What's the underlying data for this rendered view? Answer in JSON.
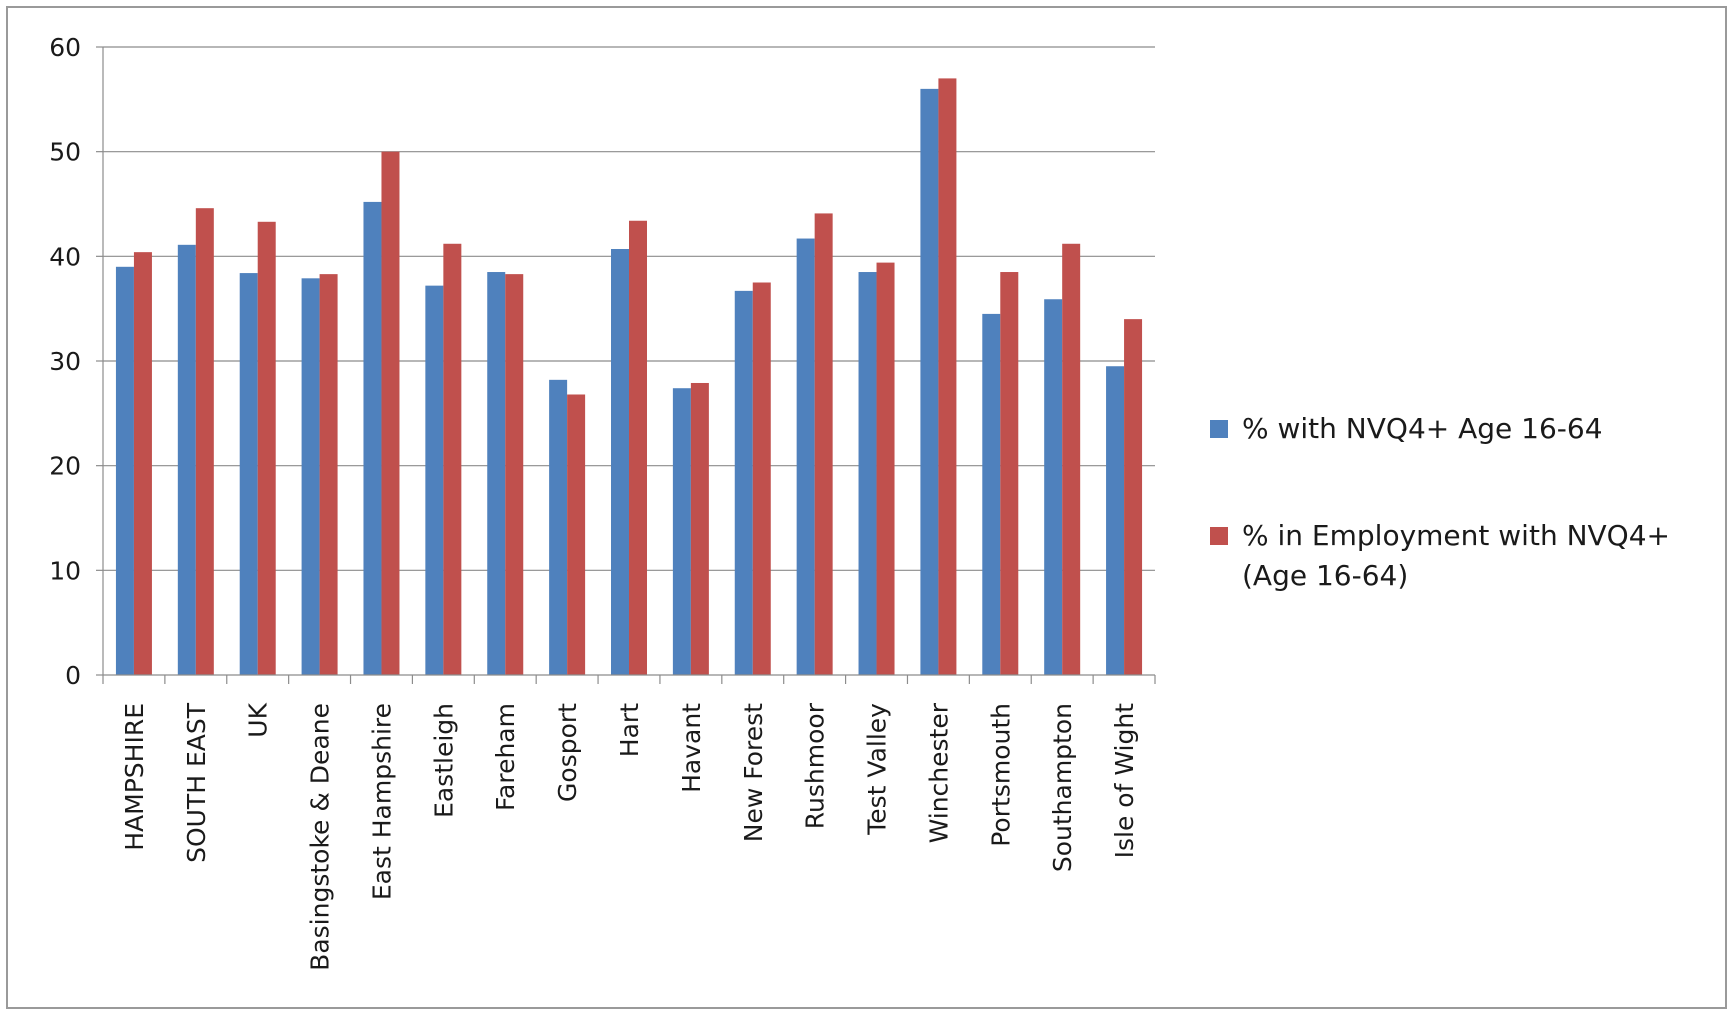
{
  "chart_data": {
    "type": "bar",
    "title": "",
    "xlabel": "",
    "ylabel": "",
    "ylim": [
      0,
      60
    ],
    "yticks": [
      0,
      10,
      20,
      30,
      40,
      50,
      60
    ],
    "grid": true,
    "legend_position": "right",
    "categories": [
      "HAMPSHIRE",
      "SOUTH EAST",
      "UK",
      "Basingstoke & Deane",
      "East Hampshire",
      "Eastleigh",
      "Fareham",
      "Gosport",
      "Hart",
      "Havant",
      "New Forest",
      "Rushmoor",
      "Test Valley",
      "Winchester",
      "Portsmouth",
      "Southampton",
      "Isle of Wight"
    ],
    "series": [
      {
        "name": "% with NVQ4+ Age 16-64",
        "color": "#4f81bd",
        "values": [
          39.0,
          41.1,
          38.4,
          37.9,
          45.2,
          37.2,
          38.5,
          28.2,
          40.7,
          27.4,
          36.7,
          41.7,
          38.5,
          56.0,
          34.5,
          35.9,
          29.5
        ]
      },
      {
        "name": "% in Employment with NVQ4+ (Age 16-64)",
        "color": "#c0504d",
        "values": [
          40.4,
          44.6,
          43.3,
          38.3,
          50.0,
          41.2,
          38.3,
          26.8,
          43.4,
          27.9,
          37.5,
          44.1,
          39.4,
          57.0,
          38.5,
          41.2,
          34.0
        ]
      }
    ],
    "legend_lines": [
      [
        "% with NVQ4+ Age 16-64"
      ],
      [
        "% in Employment with NVQ4+",
        "(Age 16-64)"
      ]
    ]
  }
}
